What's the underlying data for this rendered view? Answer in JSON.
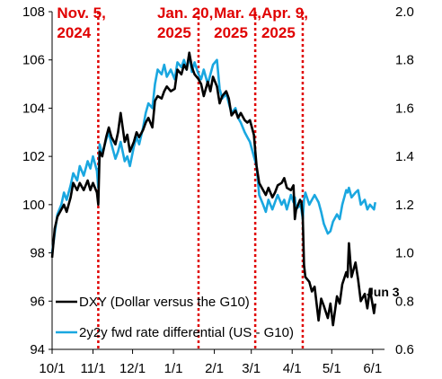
{
  "chart_data": {
    "type": "line",
    "title": "",
    "x_tick_labels": [
      "10/1",
      "11/1",
      "12/1",
      "1/1",
      "2/1",
      "3/1",
      "4/1",
      "5/1",
      "6/1"
    ],
    "x_range": [
      "2024-10-01",
      "2025-06-10"
    ],
    "y_left": {
      "range": [
        94,
        108
      ],
      "ticks": [
        "94",
        "96",
        "98",
        "100",
        "102",
        "104",
        "106",
        "108"
      ]
    },
    "y_right": {
      "range": [
        0.6,
        2.0
      ],
      "ticks": [
        "0.6",
        "0.8",
        "1.0",
        "1.2",
        "1.4",
        "1.6",
        "1.8",
        "2.0"
      ]
    },
    "events": [
      {
        "date": "2024-11-05",
        "line1": "Nov. 5,",
        "line2": "2024"
      },
      {
        "date": "2025-01-20",
        "line1": "Jan. 20,",
        "line2": "2025"
      },
      {
        "date": "2025-03-04",
        "line1": "Mar. 4,",
        "line2": "2025"
      },
      {
        "date": "2025-04-09",
        "line1": "Apr. 9,",
        "line2": "2025"
      }
    ],
    "end_annotation": "Jun 3",
    "series": [
      {
        "name": "DXY (Dollar versus the G10)",
        "axis": "left",
        "color": "#000000",
        "points": [
          [
            "2024-10-01",
            97.8
          ],
          [
            "2024-10-03",
            99.0
          ],
          [
            "2024-10-05",
            99.5
          ],
          [
            "2024-10-08",
            99.8
          ],
          [
            "2024-10-10",
            100.0
          ],
          [
            "2024-10-12",
            99.7
          ],
          [
            "2024-10-15",
            100.3
          ],
          [
            "2024-10-17",
            100.9
          ],
          [
            "2024-10-20",
            100.6
          ],
          [
            "2024-10-22",
            100.9
          ],
          [
            "2024-10-25",
            100.6
          ],
          [
            "2024-10-28",
            101.0
          ],
          [
            "2024-10-30",
            100.6
          ],
          [
            "2024-11-01",
            100.9
          ],
          [
            "2024-11-04",
            100.5
          ],
          [
            "2024-11-05",
            100.0
          ],
          [
            "2024-11-06",
            102.2
          ],
          [
            "2024-11-08",
            102.0
          ],
          [
            "2024-11-11",
            102.8
          ],
          [
            "2024-11-13",
            103.2
          ],
          [
            "2024-11-15",
            102.8
          ],
          [
            "2024-11-18",
            102.5
          ],
          [
            "2024-11-20",
            103.0
          ],
          [
            "2024-11-22",
            103.8
          ],
          [
            "2024-11-25",
            102.6
          ],
          [
            "2024-11-27",
            102.9
          ],
          [
            "2024-11-29",
            102.2
          ],
          [
            "2024-12-02",
            102.6
          ],
          [
            "2024-12-04",
            103.0
          ],
          [
            "2024-12-06",
            102.8
          ],
          [
            "2024-12-09",
            103.1
          ],
          [
            "2024-12-11",
            103.4
          ],
          [
            "2024-12-13",
            103.6
          ],
          [
            "2024-12-16",
            103.2
          ],
          [
            "2024-12-18",
            104.3
          ],
          [
            "2024-12-20",
            104.5
          ],
          [
            "2024-12-23",
            104.4
          ],
          [
            "2024-12-25",
            104.7
          ],
          [
            "2024-12-27",
            104.9
          ],
          [
            "2024-12-30",
            104.7
          ],
          [
            "2025-01-02",
            104.8
          ],
          [
            "2025-01-04",
            105.6
          ],
          [
            "2025-01-07",
            105.4
          ],
          [
            "2025-01-09",
            105.8
          ],
          [
            "2025-01-11",
            105.6
          ],
          [
            "2025-01-13",
            106.3
          ],
          [
            "2025-01-15",
            105.7
          ],
          [
            "2025-01-17",
            105.4
          ],
          [
            "2025-01-20",
            105.2
          ],
          [
            "2025-01-22",
            105.0
          ],
          [
            "2025-01-24",
            104.5
          ],
          [
            "2025-01-27",
            105.1
          ],
          [
            "2025-01-29",
            104.7
          ],
          [
            "2025-01-31",
            105.3
          ],
          [
            "2025-02-03",
            104.9
          ],
          [
            "2025-02-05",
            104.2
          ],
          [
            "2025-02-07",
            104.5
          ],
          [
            "2025-02-10",
            104.7
          ],
          [
            "2025-02-12",
            104.4
          ],
          [
            "2025-02-14",
            103.7
          ],
          [
            "2025-02-17",
            103.9
          ],
          [
            "2025-02-19",
            103.6
          ],
          [
            "2025-02-21",
            103.8
          ],
          [
            "2025-02-24",
            103.5
          ],
          [
            "2025-02-26",
            103.4
          ],
          [
            "2025-02-28",
            103.5
          ],
          [
            "2025-03-03",
            102.9
          ],
          [
            "2025-03-05",
            101.6
          ],
          [
            "2025-03-07",
            100.9
          ],
          [
            "2025-03-10",
            100.6
          ],
          [
            "2025-03-12",
            100.4
          ],
          [
            "2025-03-14",
            100.7
          ],
          [
            "2025-03-17",
            100.3
          ],
          [
            "2025-03-19",
            100.5
          ],
          [
            "2025-03-21",
            100.8
          ],
          [
            "2025-03-24",
            100.9
          ],
          [
            "2025-03-26",
            101.1
          ],
          [
            "2025-03-28",
            100.7
          ],
          [
            "2025-03-31",
            100.6
          ],
          [
            "2025-04-02",
            100.8
          ],
          [
            "2025-04-03",
            99.4
          ],
          [
            "2025-04-04",
            99.8
          ],
          [
            "2025-04-07",
            100.2
          ],
          [
            "2025-04-08",
            100.1
          ],
          [
            "2025-04-09",
            99.5
          ],
          [
            "2025-04-10",
            97.5
          ],
          [
            "2025-04-11",
            97.0
          ],
          [
            "2025-04-14",
            96.8
          ],
          [
            "2025-04-16",
            96.4
          ],
          [
            "2025-04-18",
            96.6
          ],
          [
            "2025-04-21",
            95.2
          ],
          [
            "2025-04-23",
            96.1
          ],
          [
            "2025-04-25",
            95.8
          ],
          [
            "2025-04-28",
            95.3
          ],
          [
            "2025-04-30",
            95.9
          ],
          [
            "2025-05-02",
            95.0
          ],
          [
            "2025-05-05",
            96.2
          ],
          [
            "2025-05-07",
            95.9
          ],
          [
            "2025-05-09",
            96.7
          ],
          [
            "2025-05-12",
            97.2
          ],
          [
            "2025-05-13",
            97.0
          ],
          [
            "2025-05-14",
            98.4
          ],
          [
            "2025-05-16",
            97.0
          ],
          [
            "2025-05-19",
            97.6
          ],
          [
            "2025-05-21",
            96.9
          ],
          [
            "2025-05-23",
            96.0
          ],
          [
            "2025-05-26",
            96.3
          ],
          [
            "2025-05-28",
            95.7
          ],
          [
            "2025-05-30",
            96.5
          ],
          [
            "2025-06-02",
            95.5
          ],
          [
            "2025-06-03",
            95.9
          ]
        ]
      },
      {
        "name": "2y2y fwd rate differential (US - G10)",
        "axis": "right",
        "color": "#1aa7e0",
        "points": [
          [
            "2024-10-01",
            1.0
          ],
          [
            "2024-10-03",
            1.08
          ],
          [
            "2024-10-05",
            1.16
          ],
          [
            "2024-10-08",
            1.2
          ],
          [
            "2024-10-10",
            1.25
          ],
          [
            "2024-10-12",
            1.22
          ],
          [
            "2024-10-15",
            1.28
          ],
          [
            "2024-10-17",
            1.33
          ],
          [
            "2024-10-20",
            1.3
          ],
          [
            "2024-10-22",
            1.36
          ],
          [
            "2024-10-25",
            1.32
          ],
          [
            "2024-10-28",
            1.38
          ],
          [
            "2024-10-30",
            1.35
          ],
          [
            "2024-11-01",
            1.4
          ],
          [
            "2024-11-04",
            1.34
          ],
          [
            "2024-11-05",
            1.27
          ],
          [
            "2024-11-06",
            1.45
          ],
          [
            "2024-11-08",
            1.41
          ],
          [
            "2024-11-11",
            1.47
          ],
          [
            "2024-11-13",
            1.5
          ],
          [
            "2024-11-15",
            1.45
          ],
          [
            "2024-11-18",
            1.39
          ],
          [
            "2024-11-20",
            1.42
          ],
          [
            "2024-11-22",
            1.46
          ],
          [
            "2024-11-25",
            1.38
          ],
          [
            "2024-11-27",
            1.4
          ],
          [
            "2024-11-29",
            1.36
          ],
          [
            "2024-12-02",
            1.44
          ],
          [
            "2024-12-04",
            1.48
          ],
          [
            "2024-12-06",
            1.45
          ],
          [
            "2024-12-09",
            1.52
          ],
          [
            "2024-12-11",
            1.58
          ],
          [
            "2024-12-13",
            1.62
          ],
          [
            "2024-12-16",
            1.6
          ],
          [
            "2024-12-18",
            1.7
          ],
          [
            "2024-12-20",
            1.76
          ],
          [
            "2024-12-23",
            1.74
          ],
          [
            "2024-12-25",
            1.78
          ],
          [
            "2024-12-27",
            1.73
          ],
          [
            "2024-12-30",
            1.76
          ],
          [
            "2025-01-02",
            1.72
          ],
          [
            "2025-01-04",
            1.79
          ],
          [
            "2025-01-07",
            1.77
          ],
          [
            "2025-01-09",
            1.8
          ],
          [
            "2025-01-11",
            1.76
          ],
          [
            "2025-01-13",
            1.82
          ],
          [
            "2025-01-15",
            1.75
          ],
          [
            "2025-01-17",
            1.79
          ],
          [
            "2025-01-20",
            1.74
          ],
          [
            "2025-01-22",
            1.72
          ],
          [
            "2025-01-24",
            1.76
          ],
          [
            "2025-01-27",
            1.7
          ],
          [
            "2025-01-29",
            1.74
          ],
          [
            "2025-01-31",
            1.78
          ],
          [
            "2025-02-03",
            1.8
          ],
          [
            "2025-02-05",
            1.68
          ],
          [
            "2025-02-07",
            1.64
          ],
          [
            "2025-02-10",
            1.66
          ],
          [
            "2025-02-12",
            1.62
          ],
          [
            "2025-02-14",
            1.58
          ],
          [
            "2025-02-17",
            1.6
          ],
          [
            "2025-02-19",
            1.56
          ],
          [
            "2025-02-21",
            1.54
          ],
          [
            "2025-02-24",
            1.5
          ],
          [
            "2025-02-26",
            1.48
          ],
          [
            "2025-02-28",
            1.46
          ],
          [
            "2025-03-03",
            1.4
          ],
          [
            "2025-03-05",
            1.36
          ],
          [
            "2025-03-07",
            1.24
          ],
          [
            "2025-03-10",
            1.2
          ],
          [
            "2025-03-12",
            1.17
          ],
          [
            "2025-03-14",
            1.22
          ],
          [
            "2025-03-17",
            1.18
          ],
          [
            "2025-03-19",
            1.21
          ],
          [
            "2025-03-21",
            1.24
          ],
          [
            "2025-03-24",
            1.2
          ],
          [
            "2025-03-26",
            1.22
          ],
          [
            "2025-03-28",
            1.18
          ],
          [
            "2025-03-31",
            1.24
          ],
          [
            "2025-04-02",
            1.21
          ],
          [
            "2025-04-03",
            1.23
          ],
          [
            "2025-04-04",
            1.18
          ],
          [
            "2025-04-07",
            1.2
          ],
          [
            "2025-04-08",
            1.18
          ],
          [
            "2025-04-09",
            1.14
          ],
          [
            "2025-04-10",
            1.22
          ],
          [
            "2025-04-11",
            1.25
          ],
          [
            "2025-04-14",
            1.2
          ],
          [
            "2025-04-16",
            1.22
          ],
          [
            "2025-04-18",
            1.24
          ],
          [
            "2025-04-21",
            1.21
          ],
          [
            "2025-04-23",
            1.17
          ],
          [
            "2025-04-25",
            1.12
          ],
          [
            "2025-04-28",
            1.08
          ],
          [
            "2025-04-30",
            1.09
          ],
          [
            "2025-05-02",
            1.13
          ],
          [
            "2025-05-05",
            1.16
          ],
          [
            "2025-05-07",
            1.14
          ],
          [
            "2025-05-09",
            1.2
          ],
          [
            "2025-05-12",
            1.26
          ],
          [
            "2025-05-13",
            1.25
          ],
          [
            "2025-05-14",
            1.27
          ],
          [
            "2025-05-16",
            1.23
          ],
          [
            "2025-05-19",
            1.25
          ],
          [
            "2025-05-21",
            1.26
          ],
          [
            "2025-05-23",
            1.2
          ],
          [
            "2025-05-26",
            1.22
          ],
          [
            "2025-05-28",
            1.18
          ],
          [
            "2025-05-30",
            1.2
          ],
          [
            "2025-06-02",
            1.18
          ],
          [
            "2025-06-03",
            1.21
          ]
        ]
      }
    ]
  }
}
